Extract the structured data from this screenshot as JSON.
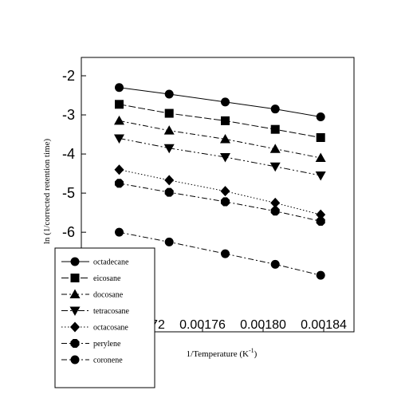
{
  "chart_data": {
    "type": "line",
    "xlabel": "1/Temperature (K",
    "xlabel_sup": "-1",
    "xlabel_close": ")",
    "ylabel": "ln (1/corrected retention time)",
    "xlim": [
      0.00168,
      0.00186
    ],
    "ylim": [
      -7.2,
      -2.0
    ],
    "x_ticks": [
      0.00172,
      0.00176,
      0.0018,
      0.00184
    ],
    "x_tick_labels": [
      "0.00172",
      "0.00176",
      "0.00180",
      "0.00184"
    ],
    "y_ticks": [
      -2,
      -3,
      -4,
      -5,
      -6
    ],
    "y_tick_labels": [
      "-2",
      "-3",
      "-4",
      "-5",
      "-6"
    ],
    "grid": false,
    "legend_position": "bottom-left",
    "x": [
      0.001705,
      0.001738,
      0.001775,
      0.001808,
      0.001838
    ],
    "series": [
      {
        "name": "octadecane",
        "marker": "circle",
        "dash": "solid",
        "values": [
          -2.3,
          -2.47,
          -2.67,
          -2.85,
          -3.05
        ]
      },
      {
        "name": "eicosane",
        "marker": "square",
        "dash": "longdash",
        "values": [
          -2.73,
          -2.96,
          -3.15,
          -3.37,
          -3.58
        ]
      },
      {
        "name": "docosane",
        "marker": "triangle-up",
        "dash": "dashdot",
        "values": [
          -3.15,
          -3.4,
          -3.62,
          -3.87,
          -4.1
        ]
      },
      {
        "name": "tetracosane",
        "marker": "triangle-down",
        "dash": "dashdot2",
        "values": [
          -3.6,
          -3.85,
          -4.08,
          -4.32,
          -4.55
        ]
      },
      {
        "name": "octacosane",
        "marker": "diamond",
        "dash": "dotted",
        "values": [
          -4.4,
          -4.67,
          -4.95,
          -5.25,
          -5.55
        ]
      },
      {
        "name": "perylene",
        "marker": "octagon",
        "dash": "dashdot",
        "values": [
          -4.75,
          -4.98,
          -5.22,
          -5.46,
          -5.72
        ]
      },
      {
        "name": "coronene",
        "marker": "circle",
        "dash": "dashdot",
        "values": [
          -6.0,
          -6.25,
          -6.55,
          -6.82,
          -7.1
        ]
      }
    ]
  }
}
